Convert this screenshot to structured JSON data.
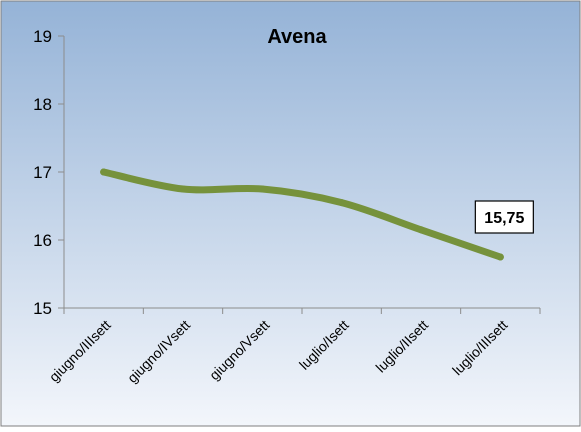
{
  "chart_data": {
    "type": "line",
    "title": "Avena",
    "categories": [
      "giugno/IIIsett",
      "giugno/IVsett",
      "giugno/Vsett",
      "luglio/Isett",
      "luglio/IIsett",
      "luglio/IIIsett"
    ],
    "series": [
      {
        "values": [
          17.0,
          16.75,
          16.75,
          16.55,
          16.15,
          15.75
        ]
      }
    ],
    "y_ticks": [
      "15",
      "16",
      "17",
      "18",
      "19"
    ],
    "ylim": [
      15,
      19
    ],
    "grid": false,
    "smooth": true,
    "data_label": {
      "index": 5,
      "text": "15,75"
    },
    "colors": {
      "line": "#76923c",
      "background_top": "#95b3d7",
      "background_bottom": "#f3f6fb",
      "axis": "#8c8c8c",
      "border": "#7f7f7f",
      "label_border": "#000000"
    }
  }
}
